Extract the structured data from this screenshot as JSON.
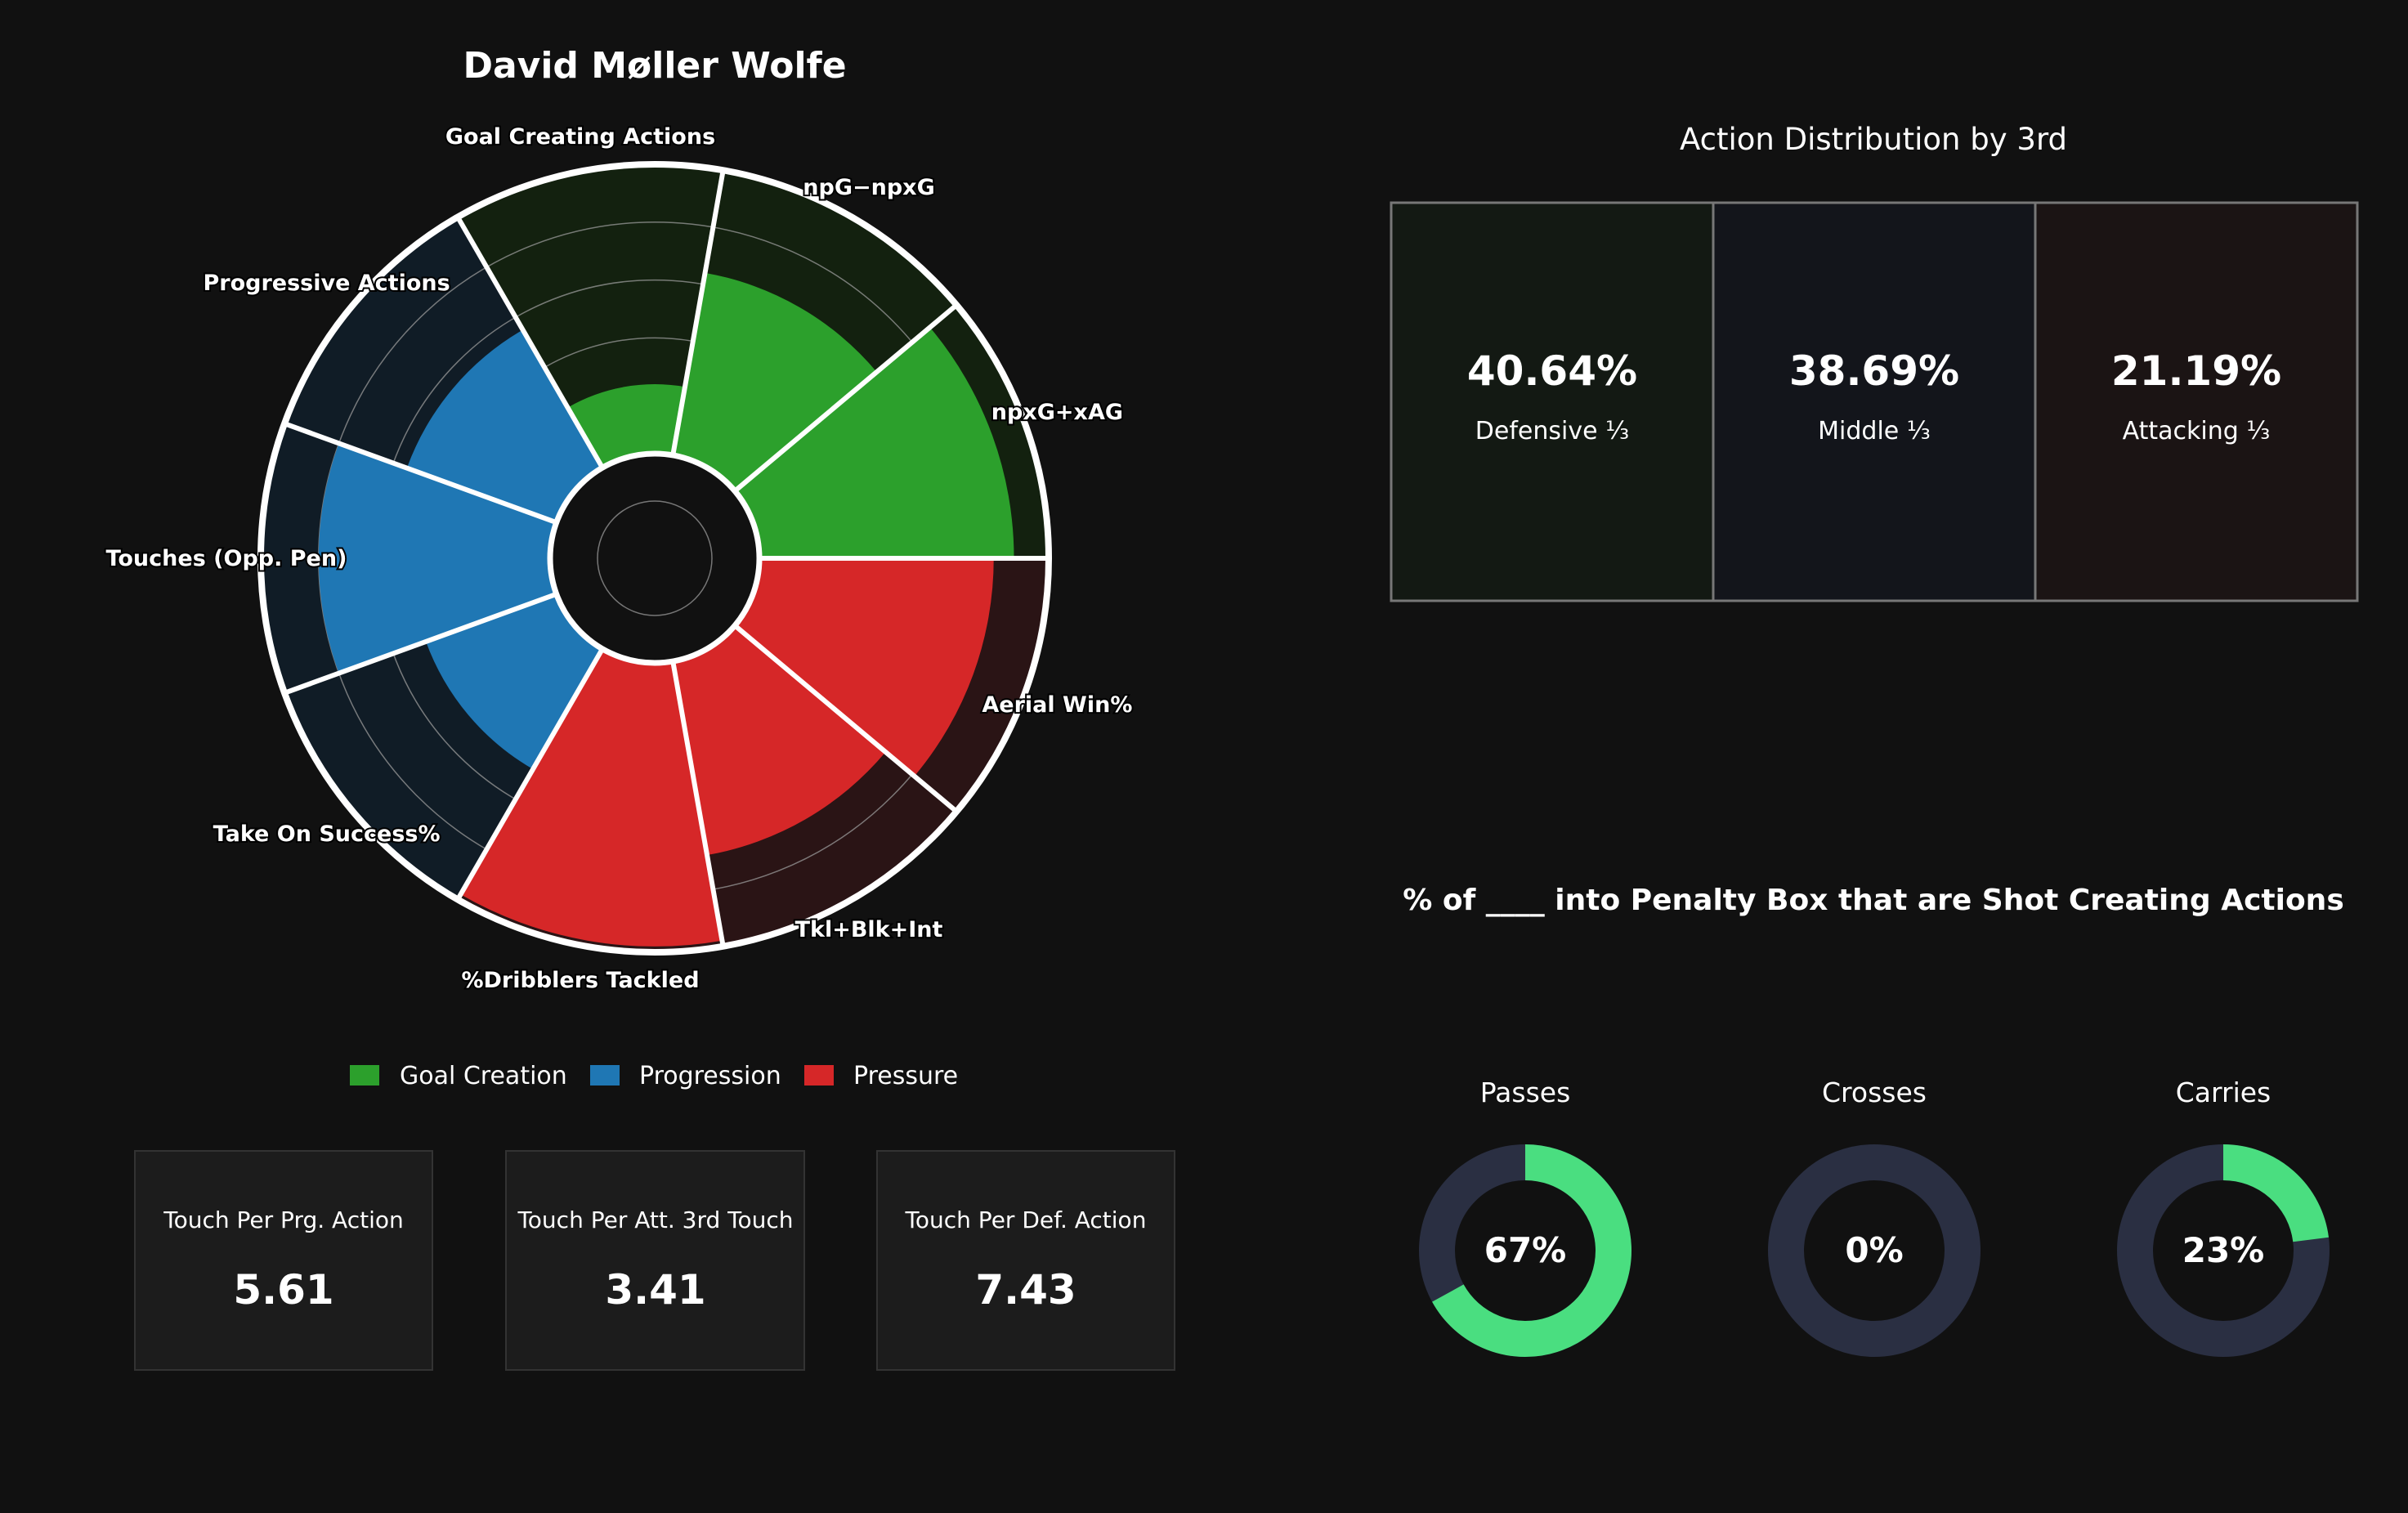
{
  "title": "David Møller Wolfe",
  "chart_data": [
    {
      "type": "radar",
      "title": "David Møller Wolfe",
      "value_max": 100,
      "metrics": [
        {
          "label": "Aerial Win%",
          "value": 81,
          "group": "Pressure"
        },
        {
          "label": "Tkl+Blk+Int",
          "value": 68,
          "group": "Pressure"
        },
        {
          "label": "%Dribblers Tackled",
          "value": 98,
          "group": "Pressure"
        },
        {
          "label": "Take On Success%",
          "value": 48,
          "group": "Progression"
        },
        {
          "label": "Touches (Opp. Pen)",
          "value": 80,
          "group": "Progression"
        },
        {
          "label": "Progressive Actions",
          "value": 55,
          "group": "Progression"
        },
        {
          "label": "Goal Creating Actions",
          "value": 24,
          "group": "Goal Creation"
        },
        {
          "label": "npG−npxG",
          "value": 64,
          "group": "Goal Creation"
        },
        {
          "label": "npxG+xAG",
          "value": 88,
          "group": "Goal Creation"
        }
      ],
      "legend": [
        {
          "label": "Goal Creation",
          "color": "#2ca02c",
          "bg": "#13210f"
        },
        {
          "label": "Progression",
          "color": "#1f77b4",
          "bg": "#101c26"
        },
        {
          "label": "Pressure",
          "color": "#d62728",
          "bg": "#2a1415"
        }
      ]
    },
    {
      "type": "table",
      "title": "Action Distribution by 3rd",
      "cells": [
        {
          "value": "40.64%",
          "label": "Defensive ⅓",
          "bg": "#131913"
        },
        {
          "value": "38.69%",
          "label": "Middle ⅓",
          "bg": "#13151b"
        },
        {
          "value": "21.19%",
          "label": "Attacking ⅓",
          "bg": "#1b1414"
        }
      ]
    },
    {
      "type": "pie",
      "title": "% of ____ into Penalty Box that are Shot Creating Actions",
      "items": [
        {
          "label": "Passes",
          "value": 67,
          "text": "67%"
        },
        {
          "label": "Crosses",
          "value": 0,
          "text": "0%"
        },
        {
          "label": "Carries",
          "value": 23,
          "text": "23%"
        }
      ],
      "fill_color": "#4ade80",
      "track_color": "#2a2f42"
    }
  ],
  "stats": [
    {
      "label": "Touch Per Prg. Action",
      "value": "5.61"
    },
    {
      "label": "Touch Per Att. 3rd Touch",
      "value": "3.41"
    },
    {
      "label": "Touch Per Def. Action",
      "value": "7.43"
    }
  ]
}
